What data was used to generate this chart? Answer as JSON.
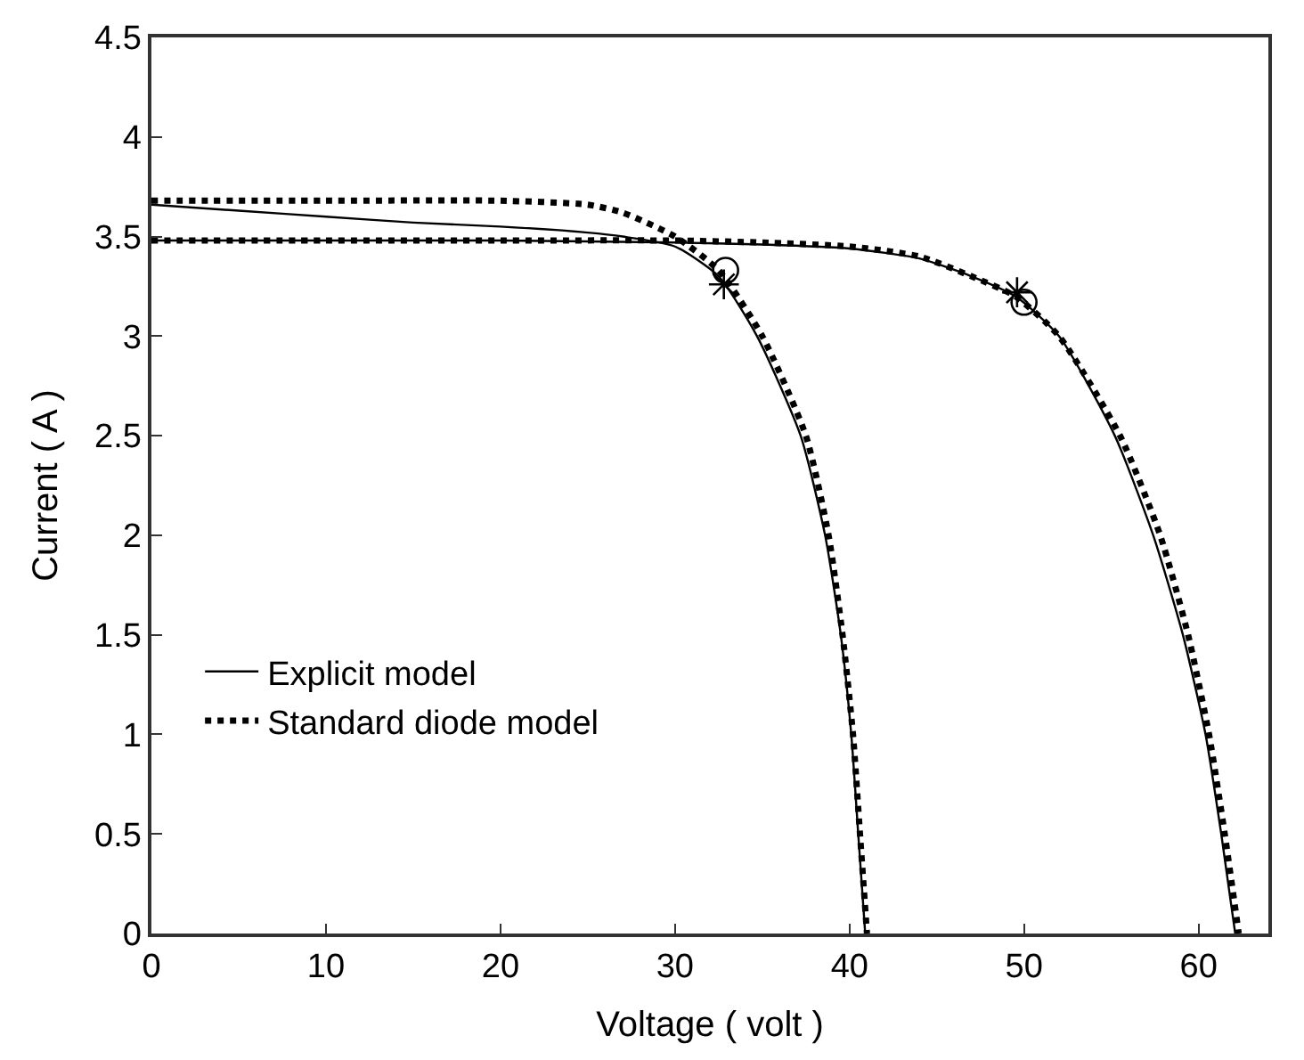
{
  "chart_data": {
    "type": "line",
    "xlabel": "Voltage ( volt )",
    "ylabel": "Current ( A )",
    "xlim": [
      0,
      64
    ],
    "xticks": [
      0,
      10,
      20,
      30,
      40,
      50,
      60
    ],
    "ylim": [
      0,
      4.5
    ],
    "yticks": [
      0,
      0.5,
      1,
      1.5,
      2,
      2.5,
      3,
      3.5,
      4,
      4.5
    ],
    "legend": "bottom left",
    "series": [
      {
        "name": "Explicit model",
        "color": "#000000",
        "line_style": "solid",
        "x": [
          0,
          5,
          10,
          15,
          20,
          25,
          27,
          30,
          32.5,
          34.7,
          37.2,
          38.6,
          39.5,
          40.1,
          40.5,
          40.9
        ],
        "values": [
          3.66,
          3.63,
          3.6,
          3.57,
          3.55,
          3.52,
          3.5,
          3.45,
          3.3,
          3.0,
          2.5,
          2.0,
          1.5,
          1.0,
          0.5,
          0
        ]
      },
      {
        "name": "Standard diode model",
        "color": "#000000",
        "line_style": "dotted",
        "x": [
          0,
          10,
          20,
          25,
          27,
          30,
          32.5,
          35,
          37.5,
          38.8,
          39.6,
          40.2,
          40.6,
          41
        ],
        "values": [
          3.68,
          3.68,
          3.68,
          3.66,
          3.62,
          3.5,
          3.33,
          3.0,
          2.5,
          2.0,
          1.5,
          1.0,
          0.5,
          0
        ]
      },
      {
        "color": "#000000",
        "line_style": "solid",
        "x": [
          0,
          10,
          20,
          30,
          35,
          40,
          44,
          47,
          49.5,
          52,
          55.2,
          57.4,
          59.1,
          60.4,
          61.3,
          62.1
        ],
        "values": [
          3.48,
          3.48,
          3.48,
          3.47,
          3.46,
          3.44,
          3.39,
          3.3,
          3.2,
          3.0,
          2.5,
          2.0,
          1.5,
          1.0,
          0.5,
          0
        ]
      },
      {
        "color": "#000000",
        "line_style": "dotted",
        "x": [
          0,
          10,
          20,
          30,
          35,
          40,
          44,
          47,
          49.5,
          52,
          55.5,
          57.8,
          59.4,
          60.6,
          61.5,
          62.3
        ],
        "values": [
          3.48,
          3.48,
          3.48,
          3.48,
          3.47,
          3.45,
          3.4,
          3.3,
          3.2,
          3.0,
          2.5,
          2.0,
          1.5,
          1.0,
          0.5,
          0
        ]
      },
      {
        "type": "scatter",
        "marker": "cross",
        "color": "#000000",
        "x": [
          32.8,
          49.6
        ],
        "values": [
          3.26,
          3.22
        ]
      },
      {
        "type": "scatter",
        "marker": "circle",
        "color": "#000000",
        "x": [
          32.9,
          50.0
        ],
        "values": [
          3.33,
          3.17
        ]
      }
    ]
  }
}
